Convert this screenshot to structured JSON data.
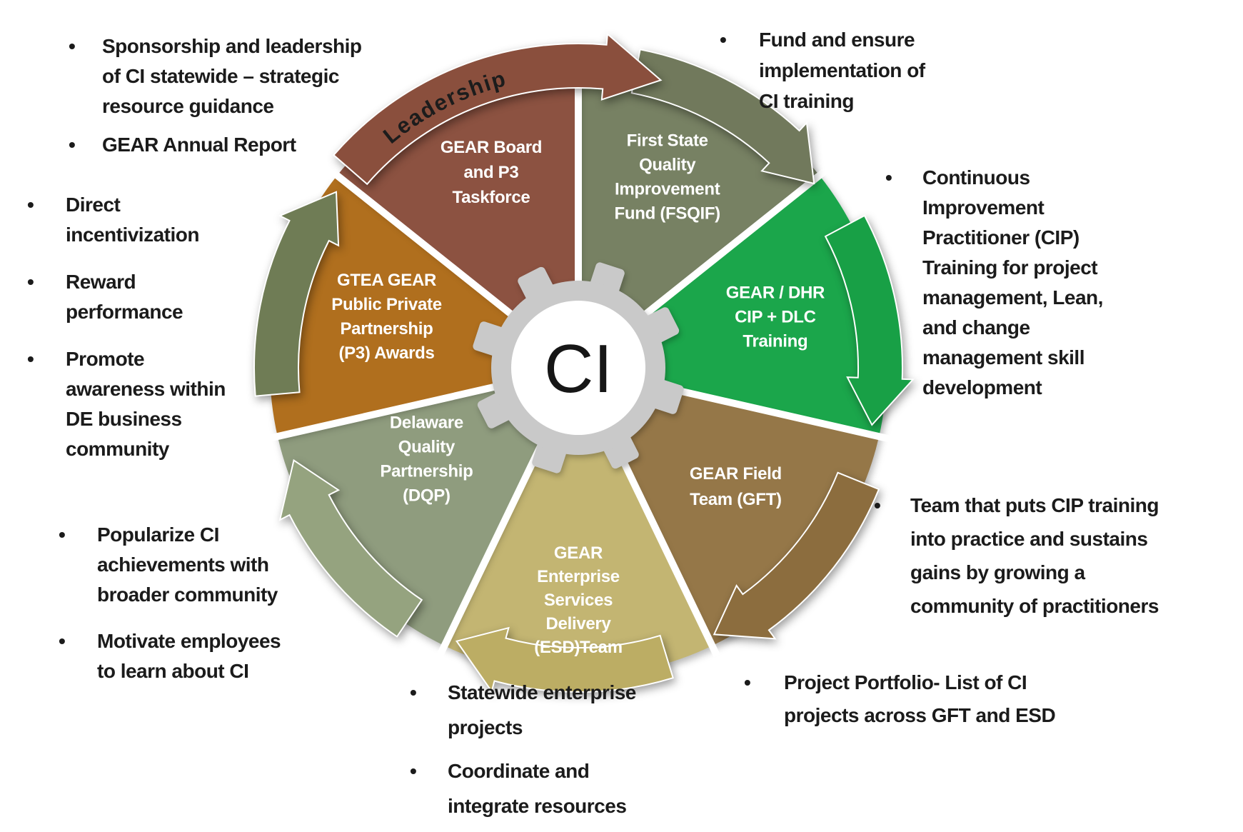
{
  "ui": {
    "bullet_char": "•"
  },
  "wheel": {
    "center_label": "CI",
    "leadership_label": "Leadership",
    "gear_color": "#C9C9C9",
    "segments": [
      {
        "name": "fsqif",
        "color": "#778163",
        "arrow_color": "#71795C",
        "lines": [
          "First State",
          "Quality",
          "Improvement",
          "Fund (FSQIF)"
        ]
      },
      {
        "name": "cip-dlc-training",
        "color": "#1BA64B",
        "arrow_color": "#18A046",
        "lines": [
          "GEAR / DHR",
          "CIP + DLC",
          "Training"
        ]
      },
      {
        "name": "gft",
        "color": "#957748",
        "arrow_color": "#8C6D3E",
        "lines": [
          "GEAR Field",
          "Team (GFT)"
        ]
      },
      {
        "name": "esd",
        "color": "#C3B572",
        "arrow_color": "#BCAD64",
        "lines": [
          "GEAR",
          "Enterprise",
          "Services",
          "Delivery",
          "(ESD)Team"
        ]
      },
      {
        "name": "dqp",
        "color": "#8F9C7E",
        "arrow_color": "#95A37F",
        "lines": [
          "Delaware",
          "Quality",
          "Partnership",
          "(DQP)"
        ]
      },
      {
        "name": "gtea-p3-awards",
        "color": "#B06F1E",
        "arrow_color": "#6F7C55",
        "lines": [
          "GTEA GEAR",
          "Public Private",
          "Partnership",
          "(P3) Awards"
        ]
      },
      {
        "name": "gear-board",
        "color": "#8C5241",
        "arrow_color": "#8A4F3D",
        "lines": [
          "GEAR Board",
          "and P3",
          "Taskforce"
        ]
      }
    ]
  },
  "annotations": {
    "top_left": {
      "bullets": [
        [
          "Sponsorship and leadership",
          "of CI statewide – strategic",
          "resource guidance"
        ],
        [
          "GEAR Annual Report"
        ]
      ]
    },
    "top_right": {
      "bullets": [
        [
          "Fund and ensure",
          "implementation of",
          "CI training"
        ]
      ]
    },
    "right_upper": {
      "bullets": [
        [
          "Continuous",
          "Improvement",
          "Practitioner (CIP)",
          "Training for project",
          "management, Lean,",
          "and change",
          "management skill",
          "development"
        ]
      ]
    },
    "right_lower": {
      "bullets": [
        [
          "Team that puts CIP training",
          "into practice and sustains",
          "gains by growing a",
          "community of practitioners"
        ]
      ]
    },
    "bottom_right": {
      "bullets": [
        [
          "Project Portfolio- List of CI",
          "projects across GFT and ESD"
        ]
      ]
    },
    "bottom_center": {
      "bullets": [
        [
          "Statewide enterprise",
          "projects"
        ],
        [
          "Coordinate and",
          "integrate resources"
        ]
      ]
    },
    "bottom_left": {
      "bullets": [
        [
          "Popularize CI",
          "achievements with",
          "broader community"
        ],
        [
          "Motivate employees",
          "to learn about CI"
        ]
      ]
    },
    "left": {
      "bullets": [
        [
          "Direct",
          "incentivization"
        ],
        [
          "Reward",
          "performance"
        ],
        [
          "Promote",
          "awareness within",
          "DE business",
          "community"
        ]
      ]
    }
  }
}
